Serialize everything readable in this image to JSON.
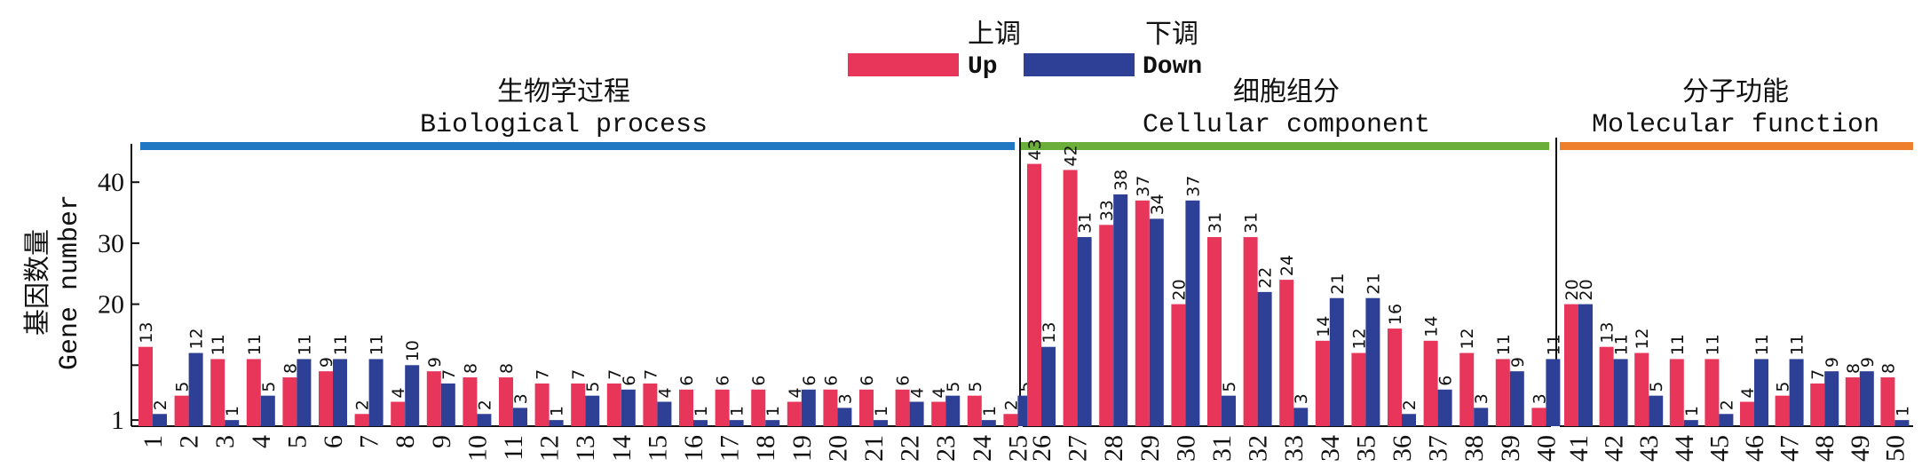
{
  "chart_data": {
    "type": "bar",
    "legend": {
      "up_cn": "上调",
      "up_en": "Up",
      "down_cn": "下调",
      "down_en": "Down",
      "placement": "top-center"
    },
    "colors": {
      "up": "#E8365A",
      "down": "#2E3F96"
    },
    "ylabel_cn": "基因数量",
    "ylabel_en": "Gene number",
    "ylim": [
      0,
      45
    ],
    "yticks": [
      {
        "value": 1,
        "label": "1"
      },
      {
        "value": 10,
        "label": ""
      },
      {
        "value": 20,
        "label": "20"
      },
      {
        "value": 30,
        "label": "30"
      },
      {
        "value": 40,
        "label": "40"
      }
    ],
    "groups": [
      {
        "cn": "生物学过程",
        "en": "Biological process",
        "from": 1,
        "to": 25,
        "color": "#1F78C1"
      },
      {
        "cn": "细胞组分",
        "en": "Cellular component",
        "from": 26,
        "to": 40,
        "color": "#6BAF3A"
      },
      {
        "cn": "分子功能",
        "en": "Molecular function",
        "from": 41,
        "to": 50,
        "color": "#EE7F2D"
      }
    ],
    "categories": [
      "1",
      "2",
      "3",
      "4",
      "5",
      "6",
      "7",
      "8",
      "9",
      "10",
      "11",
      "12",
      "13",
      "14",
      "15",
      "16",
      "17",
      "18",
      "19",
      "20",
      "21",
      "22",
      "23",
      "24",
      "25",
      "26",
      "27",
      "28",
      "29",
      "30",
      "31",
      "32",
      "33",
      "34",
      "35",
      "36",
      "37",
      "38",
      "39",
      "40",
      "41",
      "42",
      "43",
      "44",
      "45",
      "46",
      "47",
      "48",
      "49",
      "50"
    ],
    "series": [
      {
        "name": "Up",
        "values": [
          13,
          5,
          11,
          11,
          8,
          9,
          2,
          4,
          9,
          8,
          8,
          7,
          7,
          7,
          7,
          6,
          6,
          6,
          4,
          6,
          6,
          6,
          4,
          5,
          2,
          43,
          42,
          33,
          37,
          20,
          31,
          31,
          24,
          14,
          12,
          16,
          14,
          12,
          11,
          3,
          20,
          13,
          12,
          11,
          11,
          4,
          5,
          7,
          8,
          8
        ]
      },
      {
        "name": "Down",
        "values": [
          2,
          12,
          1,
          5,
          11,
          11,
          11,
          10,
          7,
          2,
          3,
          1,
          5,
          6,
          4,
          1,
          1,
          1,
          6,
          3,
          1,
          4,
          5,
          1,
          5,
          13,
          31,
          38,
          34,
          37,
          5,
          22,
          3,
          21,
          21,
          2,
          6,
          3,
          9,
          11,
          20,
          11,
          5,
          1,
          2,
          11,
          11,
          9,
          9,
          1
        ]
      }
    ]
  }
}
